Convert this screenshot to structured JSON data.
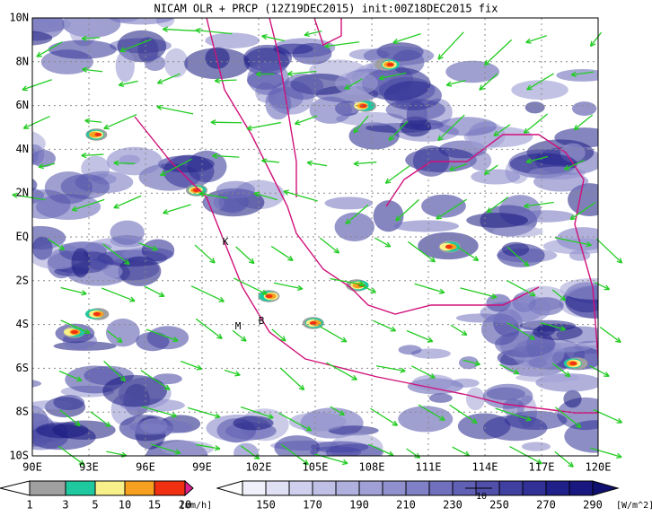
{
  "title": "NICAM OLR + PRCP (12Z19DEC2015) init:00Z18DEC2015 fix",
  "map": {
    "lon_labels": [
      "90E",
      "93E",
      "96E",
      "99E",
      "102E",
      "105E",
      "108E",
      "111E",
      "114E",
      "117E",
      "120E"
    ],
    "lat_labels": [
      "10N",
      "8N",
      "6N",
      "4N",
      "2N",
      "EQ",
      "2S",
      "4S",
      "6S",
      "8S",
      "10S"
    ],
    "places": [
      "K",
      "M",
      "B"
    ]
  },
  "precip_legend": {
    "labels": [
      1,
      3,
      5,
      10,
      15,
      20
    ],
    "unit": "[mm/h]",
    "colors": [
      "#ffffff",
      "#a0a0a0",
      "#20c8a0",
      "#f8f088",
      "#f8a020",
      "#f03010",
      "#e0208c"
    ]
  },
  "olr_legend": {
    "labels": [
      150,
      170,
      190,
      210,
      230,
      250,
      270,
      290
    ],
    "unit": "[W/m^2]",
    "colors": [
      "#ffffff",
      "#f0f0fa",
      "#e0e0f4",
      "#d0d0ee",
      "#c0c0e6",
      "#b0b0de",
      "#a0a0d6",
      "#9090ce",
      "#8080c6",
      "#7070be",
      "#6060b4",
      "#5050aa",
      "#4040a0",
      "#303096",
      "#20208a",
      "#181880",
      "#101070"
    ]
  },
  "vector_reference": "10"
}
